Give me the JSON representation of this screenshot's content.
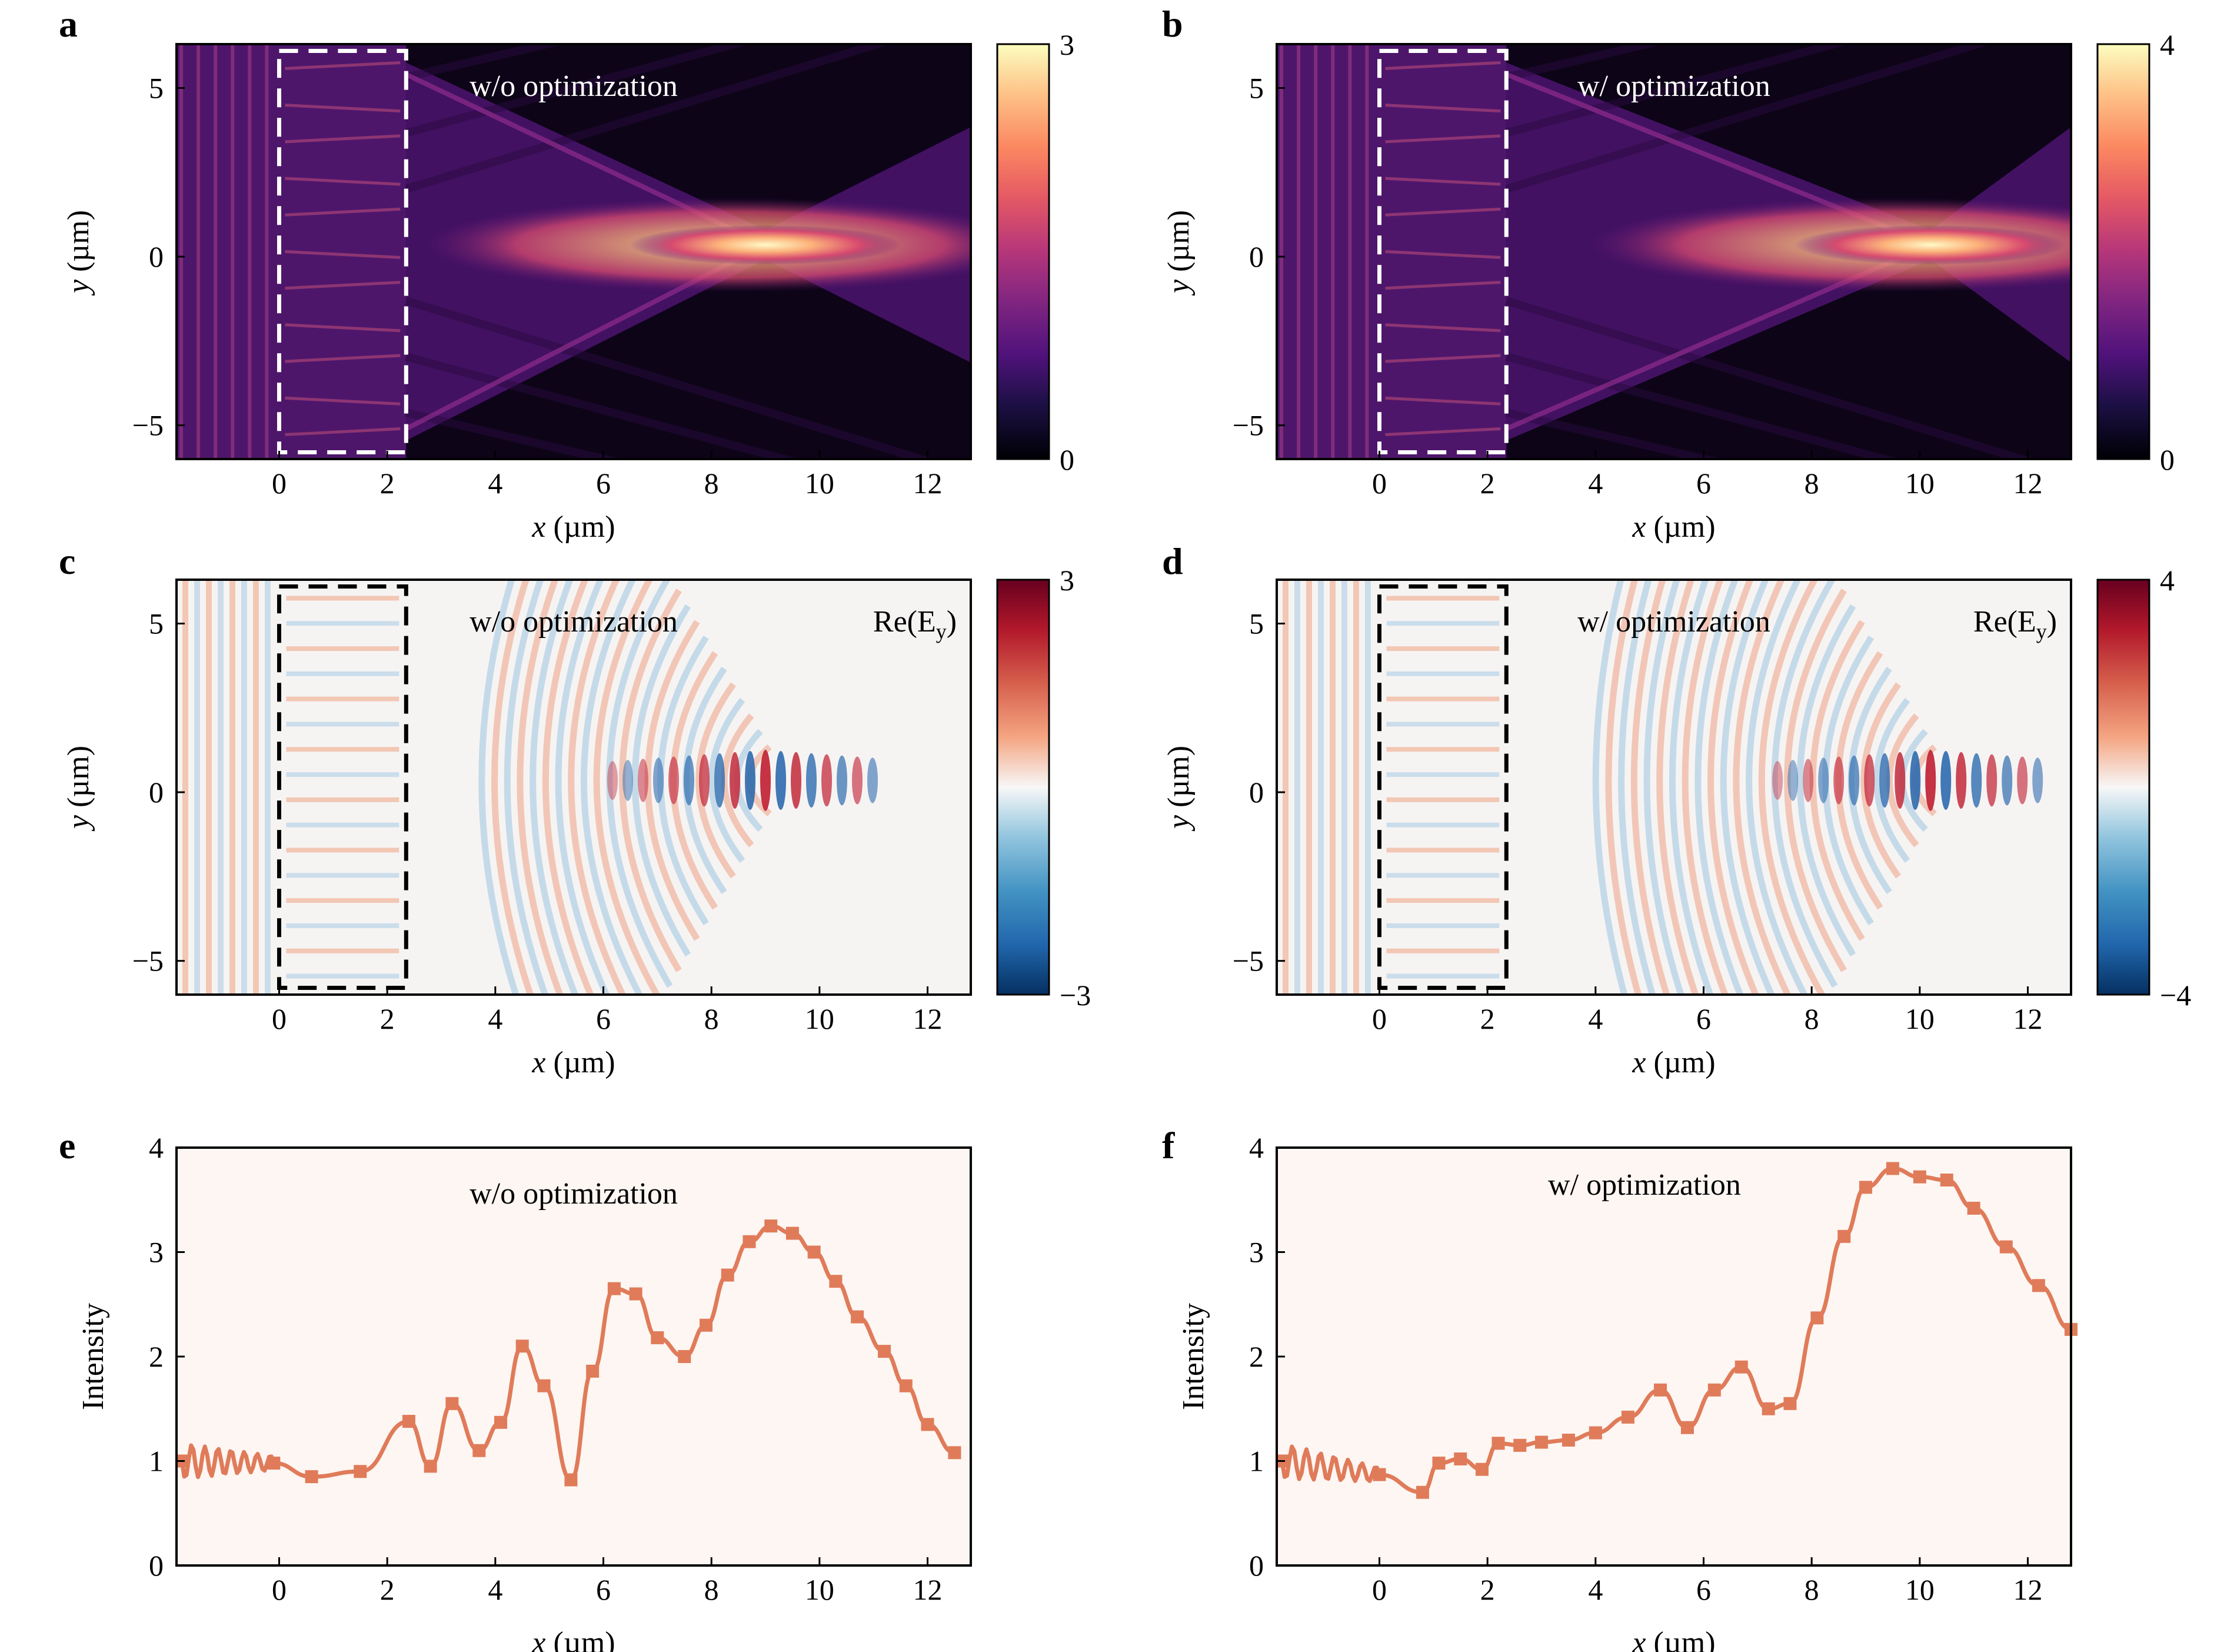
{
  "chart_data": [
    {
      "panel": "a",
      "type": "heatmap",
      "annotation": "w/o optimization",
      "xlabel": "x (µm)",
      "ylabel": "y (µm)",
      "xlim": [
        -1.9,
        12.8
      ],
      "ylim": [
        -6,
        6.3
      ],
      "xticks": [
        "0",
        "2",
        "4",
        "6",
        "8",
        "10",
        "12"
      ],
      "yticks": [
        "−5",
        "0",
        "5"
      ],
      "colorbar": {
        "min": 0,
        "max": 3,
        "labels": [
          "3",
          "0"
        ],
        "colormap": "magma"
      },
      "metasurface_box": {
        "x": [
          0,
          2.35
        ],
        "y": [
          -5.8,
          6.1
        ],
        "style": "dashed",
        "color": "#ffffff"
      },
      "focus": {
        "x": 9.0,
        "y": 0.35
      }
    },
    {
      "panel": "b",
      "type": "heatmap",
      "annotation": "w/ optimization",
      "xlabel": "x (µm)",
      "ylabel": "y (µm)",
      "xlim": [
        -1.9,
        12.8
      ],
      "ylim": [
        -6,
        6.3
      ],
      "xticks": [
        "0",
        "2",
        "4",
        "6",
        "8",
        "10",
        "12"
      ],
      "yticks": [
        "−5",
        "0",
        "5"
      ],
      "colorbar": {
        "min": 0,
        "max": 4,
        "labels": [
          "4",
          "0"
        ],
        "colormap": "magma"
      },
      "metasurface_box": {
        "x": [
          0,
          2.35
        ],
        "y": [
          -5.8,
          6.1
        ],
        "style": "dashed",
        "color": "#ffffff"
      },
      "focus": {
        "x": 10.2,
        "y": 0.35
      }
    },
    {
      "panel": "c",
      "type": "heatmap",
      "annotation": "w/o optimization",
      "field_label": "Re(E",
      "field_sub": "y",
      "field_close": ")",
      "xlabel": "x (µm)",
      "ylabel": "y (µm)",
      "xlim": [
        -1.9,
        12.8
      ],
      "ylim": [
        -6,
        6.3
      ],
      "xticks": [
        "0",
        "2",
        "4",
        "6",
        "8",
        "10",
        "12"
      ],
      "yticks": [
        "−5",
        "0",
        "5"
      ],
      "colorbar": {
        "min": -3,
        "max": 3,
        "labels": [
          "3",
          "−3"
        ],
        "colormap": "RdBu_r"
      },
      "metasurface_box": {
        "x": [
          0,
          2.35
        ],
        "y": [
          -5.8,
          6.1
        ],
        "style": "dashed",
        "color": "#000000"
      },
      "focus": {
        "x": 9.0,
        "y": 0.35
      }
    },
    {
      "panel": "d",
      "type": "heatmap",
      "annotation": "w/ optimization",
      "field_label": "Re(E",
      "field_sub": "y",
      "field_close": ")",
      "xlabel": "x (µm)",
      "ylabel": "y (µm)",
      "xlim": [
        -1.9,
        12.8
      ],
      "ylim": [
        -6,
        6.3
      ],
      "xticks": [
        "0",
        "2",
        "4",
        "6",
        "8",
        "10",
        "12"
      ],
      "yticks": [
        "−5",
        "0",
        "5"
      ],
      "colorbar": {
        "min": -4,
        "max": 4,
        "labels": [
          "4",
          "−4"
        ],
        "colormap": "RdBu_r"
      },
      "metasurface_box": {
        "x": [
          0,
          2.35
        ],
        "y": [
          -5.8,
          6.1
        ],
        "style": "dashed",
        "color": "#000000"
      },
      "focus": {
        "x": 10.2,
        "y": 0.35
      }
    },
    {
      "panel": "e",
      "type": "line",
      "annotation": "w/o optimization",
      "xlabel": "x (µm)",
      "ylabel": "Intensity",
      "xlim": [
        -1.9,
        12.8
      ],
      "ylim": [
        0,
        4
      ],
      "xticks": [
        "0",
        "2",
        "4",
        "6",
        "8",
        "10",
        "12"
      ],
      "yticks": [
        "0",
        "1",
        "2",
        "3",
        "4"
      ],
      "color": "#e07b5a",
      "markers": {
        "x": [
          -1.8,
          -0.1,
          0.6,
          1.5,
          2.4,
          2.8,
          3.2,
          3.7,
          4.1,
          4.5,
          4.9,
          5.4,
          5.8,
          6.2,
          6.6,
          7.0,
          7.5,
          7.9,
          8.3,
          8.7,
          9.1,
          9.5,
          9.9,
          10.3,
          10.7,
          11.2,
          11.6,
          12.0,
          12.5
        ],
        "y": [
          1.0,
          0.98,
          0.85,
          0.9,
          1.38,
          0.95,
          1.55,
          1.1,
          1.37,
          2.1,
          1.72,
          0.82,
          1.86,
          2.65,
          2.6,
          2.18,
          2.0,
          2.3,
          2.78,
          3.1,
          3.25,
          3.18,
          3.0,
          2.72,
          2.38,
          2.05,
          1.72,
          1.35,
          1.08
        ]
      }
    },
    {
      "panel": "f",
      "type": "line",
      "annotation": "w/ optimization",
      "xlabel": "x (µm)",
      "ylabel": "Intensity",
      "xlim": [
        -1.9,
        12.8
      ],
      "ylim": [
        0,
        4
      ],
      "xticks": [
        "0",
        "2",
        "4",
        "6",
        "8",
        "10",
        "12"
      ],
      "yticks": [
        "0",
        "1",
        "2",
        "3",
        "4"
      ],
      "color": "#e07b5a",
      "markers": {
        "x": [
          -1.8,
          0.0,
          0.8,
          1.1,
          1.5,
          1.9,
          2.2,
          2.6,
          3.0,
          3.5,
          4.0,
          4.6,
          5.2,
          5.7,
          6.2,
          6.7,
          7.2,
          7.6,
          8.1,
          8.6,
          9.0,
          9.5,
          10.0,
          10.5,
          11.0,
          11.6,
          12.2,
          12.8
        ],
        "y": [
          1.0,
          0.87,
          0.7,
          0.98,
          1.02,
          0.92,
          1.17,
          1.15,
          1.18,
          1.2,
          1.27,
          1.42,
          1.68,
          1.32,
          1.68,
          1.9,
          1.5,
          1.55,
          2.37,
          3.15,
          3.62,
          3.8,
          3.72,
          3.69,
          3.42,
          3.05,
          2.68,
          2.26
        ]
      }
    }
  ]
}
